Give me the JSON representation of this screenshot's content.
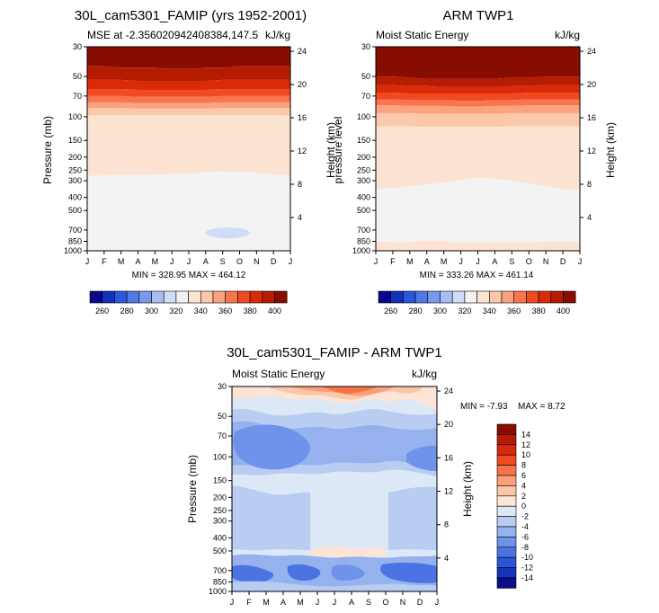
{
  "chart_data": [
    {
      "type": "contour",
      "title": "30L_cam5301_FAMIP (yrs 1952-2001)",
      "left_label": "MSE at -2.356020942408384,147.5",
      "right_label": "kJ/kg",
      "ylabel": "Pressure (mb)",
      "y2label": "Height (km)",
      "stats": "MIN = 328.95  MAX = 464.12",
      "x_ticks": [
        "J",
        "F",
        "M",
        "A",
        "M",
        "J",
        "J",
        "A",
        "S",
        "O",
        "N",
        "D",
        "J"
      ],
      "y_ticks": [
        30,
        50,
        70,
        100,
        150,
        200,
        250,
        300,
        400,
        500,
        700,
        850,
        1000
      ],
      "y2_ticks": [
        24,
        20,
        16,
        12,
        8,
        4
      ],
      "levels": [
        260,
        270,
        280,
        290,
        300,
        310,
        320,
        330,
        340,
        350,
        360,
        370,
        380,
        390,
        400
      ],
      "bands_from_top": [
        {
          "bottom": [
            42,
            42,
            43,
            43,
            43,
            44,
            44,
            43,
            43,
            42,
            42,
            42,
            42
          ],
          "level": ">400"
        },
        {
          "bottom": [
            53,
            53,
            53,
            54,
            54,
            54,
            54,
            54,
            53,
            53,
            53,
            53,
            53
          ],
          "level": "390-400"
        },
        {
          "bottom": [
            62,
            62,
            62,
            63,
            63,
            63,
            63,
            63,
            62,
            62,
            62,
            62,
            62
          ],
          "level": "380-390"
        },
        {
          "bottom": [
            70,
            70,
            70,
            71,
            71,
            71,
            71,
            71,
            70,
            70,
            70,
            70,
            70
          ],
          "level": "370-380"
        },
        {
          "bottom": [
            78,
            78,
            78,
            79,
            79,
            79,
            79,
            79,
            78,
            78,
            78,
            78,
            78
          ],
          "level": "360-370"
        },
        {
          "bottom": [
            86,
            86,
            86,
            87,
            87,
            87,
            87,
            87,
            86,
            86,
            86,
            86,
            86
          ],
          "level": "350-360"
        },
        {
          "bottom": [
            98,
            97,
            97,
            97,
            97,
            97,
            97,
            97,
            97,
            97,
            97,
            97,
            98
          ],
          "level": "340-350"
        },
        {
          "bottom": [
            275,
            274,
            272,
            271,
            270,
            268,
            266,
            258,
            255,
            257,
            262,
            270,
            275
          ],
          "level": "330-340"
        },
        {
          "bottom": [
            1000,
            1000,
            1000,
            1000,
            1000,
            1000,
            1000,
            1000,
            1000,
            1000,
            1000,
            1000,
            1000
          ],
          "level": "320-330"
        }
      ],
      "patch": {
        "level": "310-320",
        "x_range": [
          7.0,
          9.6
        ],
        "p_center": 735
      }
    },
    {
      "type": "contour",
      "title": "ARM TWP1",
      "left_label": "Moist Static Energy",
      "right_label": "kJ/kg",
      "ylabel": "pressure level",
      "y2label": "Height (km)",
      "stats": "MIN = 333.26  MAX = 461.14",
      "x_ticks": [
        "J",
        "F",
        "M",
        "A",
        "M",
        "J",
        "J",
        "A",
        "S",
        "O",
        "N",
        "D",
        "J"
      ],
      "y_ticks": [
        30,
        50,
        70,
        100,
        150,
        200,
        250,
        300,
        400,
        500,
        700,
        850,
        1000
      ],
      "y2_ticks": [
        24,
        20,
        16,
        12,
        8,
        4
      ],
      "levels": [
        260,
        270,
        280,
        290,
        300,
        310,
        320,
        330,
        340,
        350,
        360,
        370,
        380,
        390,
        400
      ],
      "bands_from_top": [
        {
          "bottom": [
            50,
            50,
            51,
            52,
            52,
            52,
            52,
            52,
            51,
            51,
            50,
            50,
            50
          ],
          "level": ">400"
        },
        {
          "bottom": [
            58,
            58,
            59,
            59,
            60,
            60,
            60,
            60,
            59,
            59,
            58,
            58,
            58
          ],
          "level": "390-400"
        },
        {
          "bottom": [
            66,
            66,
            67,
            67,
            67,
            67,
            67,
            67,
            67,
            66,
            66,
            66,
            66
          ],
          "level": "380-390"
        },
        {
          "bottom": [
            74,
            74,
            75,
            75,
            75,
            76,
            76,
            75,
            75,
            74,
            74,
            74,
            74
          ],
          "level": "370-380"
        },
        {
          "bottom": [
            82,
            82,
            83,
            83,
            83,
            84,
            84,
            83,
            83,
            82,
            82,
            82,
            82
          ],
          "level": "360-370"
        },
        {
          "bottom": [
            94,
            94,
            94,
            95,
            95,
            95,
            95,
            95,
            94,
            94,
            94,
            94,
            94
          ],
          "level": "350-360"
        },
        {
          "bottom": [
            118,
            118,
            118,
            119,
            119,
            119,
            119,
            119,
            118,
            118,
            118,
            118,
            118
          ],
          "level": "340-350"
        },
        {
          "bottom": [
            345,
            340,
            330,
            320,
            310,
            295,
            285,
            290,
            300,
            315,
            330,
            345,
            350
          ],
          "level": "330-340"
        },
        {
          "bottom": [
            855,
            860,
            860,
            840,
            850,
            875,
            870,
            865,
            860,
            865,
            855,
            855,
            855
          ],
          "level": "320-330"
        },
        {
          "bottom": [
            1000,
            1000,
            1000,
            1000,
            1000,
            1000,
            1000,
            1000,
            1000,
            1000,
            1000,
            1000,
            1000
          ],
          "level": "330-340"
        }
      ]
    },
    {
      "type": "contour",
      "title": "30L_cam5301_FAMIP - ARM TWP1",
      "left_label": "Moist Static Energy",
      "right_label": "kJ/kg",
      "ylabel": "Pressure (mb)",
      "y2label": "Height (km)",
      "stats_min": "MIN = -7.93",
      "stats_max": "MAX =  8.72",
      "x_ticks": [
        "J",
        "F",
        "M",
        "A",
        "M",
        "J",
        "J",
        "A",
        "S",
        "O",
        "N",
        "D",
        "J"
      ],
      "y_ticks": [
        30,
        50,
        70,
        100,
        150,
        200,
        250,
        300,
        400,
        500,
        700,
        850,
        1000
      ],
      "y2_ticks": [
        24,
        20,
        16,
        12,
        8,
        4
      ],
      "levels": [
        -14,
        -12,
        -10,
        -8,
        -6,
        -4,
        -2,
        0,
        2,
        4,
        6,
        8,
        10,
        12,
        14
      ]
    }
  ],
  "colorbar_top": {
    "labels": [
      "260",
      "280",
      "300",
      "320",
      "340",
      "360",
      "380",
      "400"
    ],
    "colors": [
      "#08088c",
      "#1630b8",
      "#2a58d8",
      "#4f79e4",
      "#7a99ec",
      "#a8bdf2",
      "#cfdcf6",
      "#f3f3f3",
      "#fde3d2",
      "#fcc8aa",
      "#fba27e",
      "#f8754f",
      "#f04a22",
      "#db2a08",
      "#b51c02",
      "#860d00"
    ]
  },
  "colorbar_diff": {
    "labels": [
      "14",
      "12",
      "10",
      "8",
      "6",
      "4",
      "2",
      "0",
      "-2",
      "-4",
      "-6",
      "-8",
      "-10",
      "-12",
      "-14"
    ],
    "colors": [
      "#880c00",
      "#b31c02",
      "#d9290a",
      "#ef4a20",
      "#f7744a",
      "#fa9f78",
      "#fcc6a8",
      "#fde4d4",
      "#dde8f6",
      "#b9cdf2",
      "#95b2ee",
      "#6f93ea",
      "#4b74e2",
      "#2a55d6",
      "#1632b6",
      "#0a0e8a"
    ]
  }
}
